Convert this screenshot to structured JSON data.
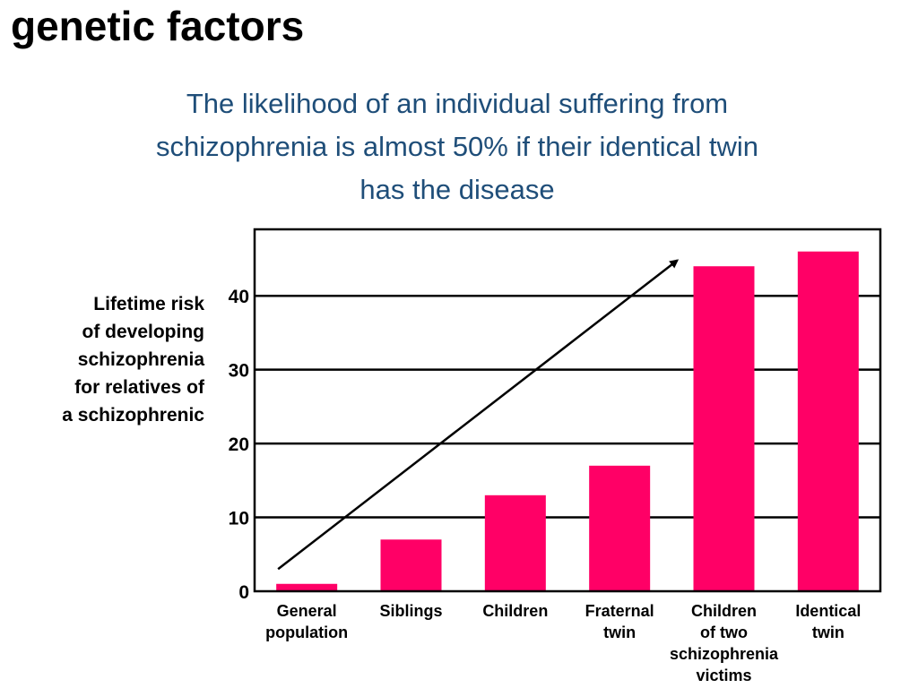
{
  "slide": {
    "title": "genetic factors",
    "subtitle_lines": [
      "The likelihood of an individual suffering from",
      "schizophrenia is almost 50% if their identical twin",
      "has the disease"
    ]
  },
  "colors": {
    "bar": "#ff0066",
    "subtitle": "#1f4e79",
    "axis": "#000000"
  },
  "chart_data": {
    "type": "bar",
    "ylabel_lines": [
      "Lifetime risk",
      "of developing",
      "schizophrenia",
      "for relatives of",
      "a schizophrenic"
    ],
    "categories": [
      [
        "General",
        "population"
      ],
      [
        "Siblings"
      ],
      [
        "Children"
      ],
      [
        "Fraternal",
        "twin"
      ],
      [
        "Children",
        "of two",
        "schizophrenia",
        "victims"
      ],
      [
        "Identical",
        "twin"
      ]
    ],
    "values": [
      1,
      7,
      13,
      17,
      44,
      46
    ],
    "ylim": [
      0,
      49
    ],
    "yticks": [
      0,
      10,
      20,
      30,
      40
    ],
    "grid": true,
    "annotation": "upward trend arrow from General population to Children of two schizophrenia victims"
  }
}
